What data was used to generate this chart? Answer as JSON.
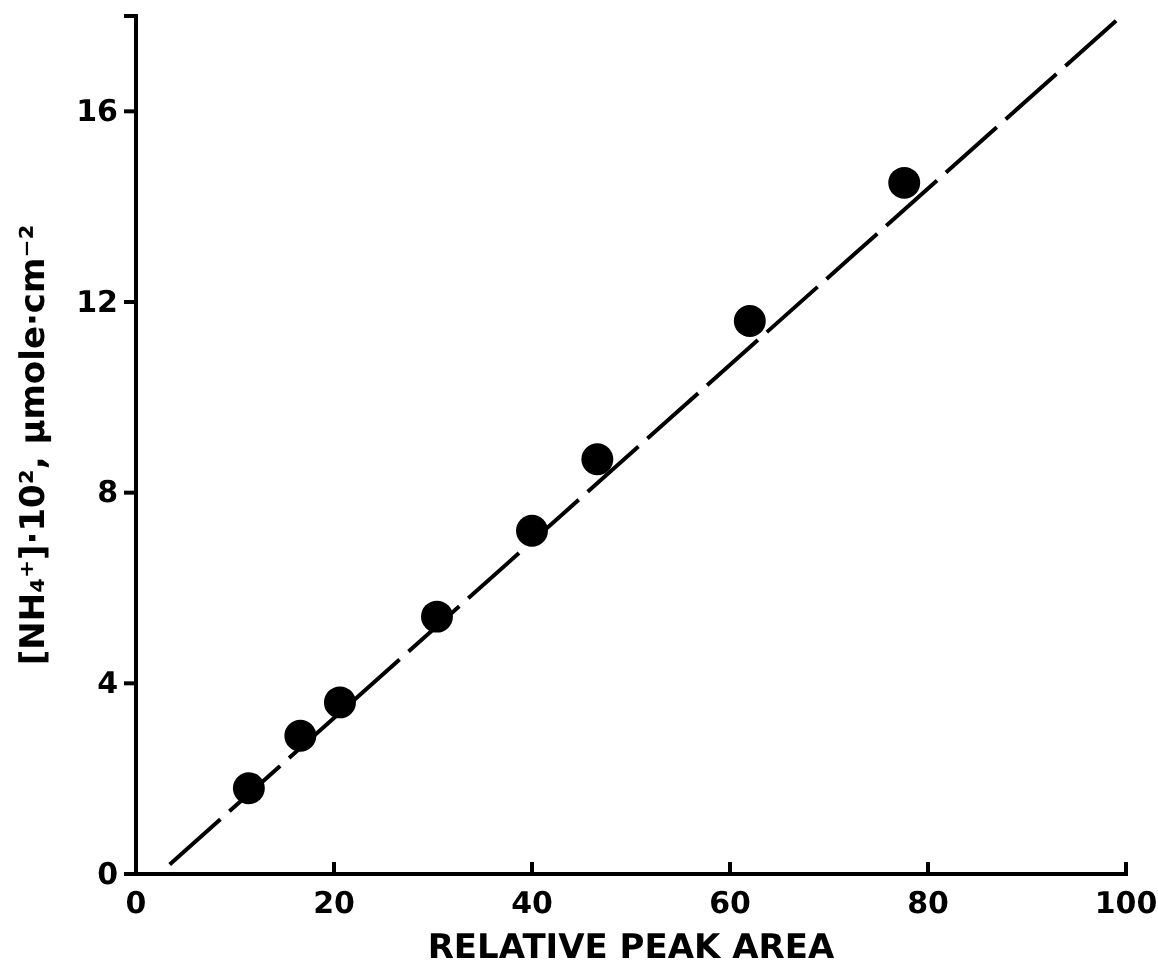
{
  "chart_data": {
    "type": "scatter",
    "xlabel": "RELATIVE PEAK AREA",
    "ylabel": "[NH₄⁺]·10², μmole·cm⁻²",
    "xlim": [
      0,
      100
    ],
    "ylim": [
      0,
      18
    ],
    "xticks": [
      0,
      20,
      40,
      60,
      80,
      100
    ],
    "yticks": [
      0,
      4,
      8,
      12,
      16
    ],
    "grid": false,
    "series": [
      {
        "color": "#000000",
        "marker": "circle",
        "x": [
          11.4,
          16.6,
          20.6,
          30.4,
          40,
          46.6,
          62,
          77.6
        ],
        "values": [
          1.8,
          2.9,
          3.6,
          5.4,
          7.2,
          8.7,
          11.6,
          14.5
        ]
      },
      {
        "type": "line",
        "color": "#000000",
        "line_style": "dashed",
        "x": [
          3.4,
          99
        ],
        "values": [
          0.2,
          17.9
        ]
      }
    ]
  }
}
